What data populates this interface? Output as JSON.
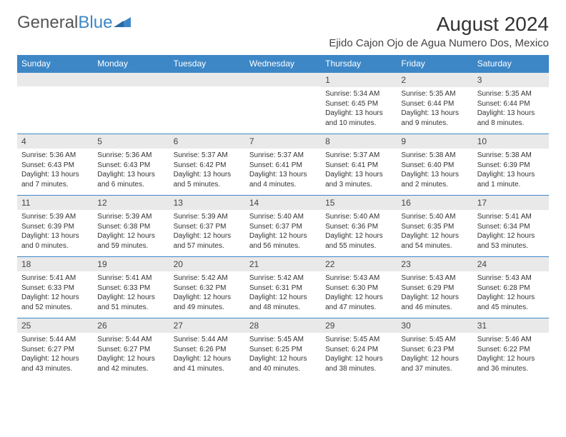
{
  "brand": {
    "part1": "General",
    "part2": "Blue"
  },
  "title": "August 2024",
  "location": "Ejido Cajon Ojo de Agua Numero Dos, Mexico",
  "colors": {
    "header_bg": "#3d87c7",
    "header_text": "#ffffff",
    "daynum_bg": "#e9e9e9",
    "border": "#3d87c7",
    "page_bg": "#ffffff"
  },
  "day_headers": [
    "Sunday",
    "Monday",
    "Tuesday",
    "Wednesday",
    "Thursday",
    "Friday",
    "Saturday"
  ],
  "weeks": [
    [
      {
        "n": "",
        "sr": "",
        "ss": "",
        "d1": "",
        "d2": ""
      },
      {
        "n": "",
        "sr": "",
        "ss": "",
        "d1": "",
        "d2": ""
      },
      {
        "n": "",
        "sr": "",
        "ss": "",
        "d1": "",
        "d2": ""
      },
      {
        "n": "",
        "sr": "",
        "ss": "",
        "d1": "",
        "d2": ""
      },
      {
        "n": "1",
        "sr": "Sunrise: 5:34 AM",
        "ss": "Sunset: 6:45 PM",
        "d1": "Daylight: 13 hours",
        "d2": "and 10 minutes."
      },
      {
        "n": "2",
        "sr": "Sunrise: 5:35 AM",
        "ss": "Sunset: 6:44 PM",
        "d1": "Daylight: 13 hours",
        "d2": "and 9 minutes."
      },
      {
        "n": "3",
        "sr": "Sunrise: 5:35 AM",
        "ss": "Sunset: 6:44 PM",
        "d1": "Daylight: 13 hours",
        "d2": "and 8 minutes."
      }
    ],
    [
      {
        "n": "4",
        "sr": "Sunrise: 5:36 AM",
        "ss": "Sunset: 6:43 PM",
        "d1": "Daylight: 13 hours",
        "d2": "and 7 minutes."
      },
      {
        "n": "5",
        "sr": "Sunrise: 5:36 AM",
        "ss": "Sunset: 6:43 PM",
        "d1": "Daylight: 13 hours",
        "d2": "and 6 minutes."
      },
      {
        "n": "6",
        "sr": "Sunrise: 5:37 AM",
        "ss": "Sunset: 6:42 PM",
        "d1": "Daylight: 13 hours",
        "d2": "and 5 minutes."
      },
      {
        "n": "7",
        "sr": "Sunrise: 5:37 AM",
        "ss": "Sunset: 6:41 PM",
        "d1": "Daylight: 13 hours",
        "d2": "and 4 minutes."
      },
      {
        "n": "8",
        "sr": "Sunrise: 5:37 AM",
        "ss": "Sunset: 6:41 PM",
        "d1": "Daylight: 13 hours",
        "d2": "and 3 minutes."
      },
      {
        "n": "9",
        "sr": "Sunrise: 5:38 AM",
        "ss": "Sunset: 6:40 PM",
        "d1": "Daylight: 13 hours",
        "d2": "and 2 minutes."
      },
      {
        "n": "10",
        "sr": "Sunrise: 5:38 AM",
        "ss": "Sunset: 6:39 PM",
        "d1": "Daylight: 13 hours",
        "d2": "and 1 minute."
      }
    ],
    [
      {
        "n": "11",
        "sr": "Sunrise: 5:39 AM",
        "ss": "Sunset: 6:39 PM",
        "d1": "Daylight: 13 hours",
        "d2": "and 0 minutes."
      },
      {
        "n": "12",
        "sr": "Sunrise: 5:39 AM",
        "ss": "Sunset: 6:38 PM",
        "d1": "Daylight: 12 hours",
        "d2": "and 59 minutes."
      },
      {
        "n": "13",
        "sr": "Sunrise: 5:39 AM",
        "ss": "Sunset: 6:37 PM",
        "d1": "Daylight: 12 hours",
        "d2": "and 57 minutes."
      },
      {
        "n": "14",
        "sr": "Sunrise: 5:40 AM",
        "ss": "Sunset: 6:37 PM",
        "d1": "Daylight: 12 hours",
        "d2": "and 56 minutes."
      },
      {
        "n": "15",
        "sr": "Sunrise: 5:40 AM",
        "ss": "Sunset: 6:36 PM",
        "d1": "Daylight: 12 hours",
        "d2": "and 55 minutes."
      },
      {
        "n": "16",
        "sr": "Sunrise: 5:40 AM",
        "ss": "Sunset: 6:35 PM",
        "d1": "Daylight: 12 hours",
        "d2": "and 54 minutes."
      },
      {
        "n": "17",
        "sr": "Sunrise: 5:41 AM",
        "ss": "Sunset: 6:34 PM",
        "d1": "Daylight: 12 hours",
        "d2": "and 53 minutes."
      }
    ],
    [
      {
        "n": "18",
        "sr": "Sunrise: 5:41 AM",
        "ss": "Sunset: 6:33 PM",
        "d1": "Daylight: 12 hours",
        "d2": "and 52 minutes."
      },
      {
        "n": "19",
        "sr": "Sunrise: 5:41 AM",
        "ss": "Sunset: 6:33 PM",
        "d1": "Daylight: 12 hours",
        "d2": "and 51 minutes."
      },
      {
        "n": "20",
        "sr": "Sunrise: 5:42 AM",
        "ss": "Sunset: 6:32 PM",
        "d1": "Daylight: 12 hours",
        "d2": "and 49 minutes."
      },
      {
        "n": "21",
        "sr": "Sunrise: 5:42 AM",
        "ss": "Sunset: 6:31 PM",
        "d1": "Daylight: 12 hours",
        "d2": "and 48 minutes."
      },
      {
        "n": "22",
        "sr": "Sunrise: 5:43 AM",
        "ss": "Sunset: 6:30 PM",
        "d1": "Daylight: 12 hours",
        "d2": "and 47 minutes."
      },
      {
        "n": "23",
        "sr": "Sunrise: 5:43 AM",
        "ss": "Sunset: 6:29 PM",
        "d1": "Daylight: 12 hours",
        "d2": "and 46 minutes."
      },
      {
        "n": "24",
        "sr": "Sunrise: 5:43 AM",
        "ss": "Sunset: 6:28 PM",
        "d1": "Daylight: 12 hours",
        "d2": "and 45 minutes."
      }
    ],
    [
      {
        "n": "25",
        "sr": "Sunrise: 5:44 AM",
        "ss": "Sunset: 6:27 PM",
        "d1": "Daylight: 12 hours",
        "d2": "and 43 minutes."
      },
      {
        "n": "26",
        "sr": "Sunrise: 5:44 AM",
        "ss": "Sunset: 6:27 PM",
        "d1": "Daylight: 12 hours",
        "d2": "and 42 minutes."
      },
      {
        "n": "27",
        "sr": "Sunrise: 5:44 AM",
        "ss": "Sunset: 6:26 PM",
        "d1": "Daylight: 12 hours",
        "d2": "and 41 minutes."
      },
      {
        "n": "28",
        "sr": "Sunrise: 5:45 AM",
        "ss": "Sunset: 6:25 PM",
        "d1": "Daylight: 12 hours",
        "d2": "and 40 minutes."
      },
      {
        "n": "29",
        "sr": "Sunrise: 5:45 AM",
        "ss": "Sunset: 6:24 PM",
        "d1": "Daylight: 12 hours",
        "d2": "and 38 minutes."
      },
      {
        "n": "30",
        "sr": "Sunrise: 5:45 AM",
        "ss": "Sunset: 6:23 PM",
        "d1": "Daylight: 12 hours",
        "d2": "and 37 minutes."
      },
      {
        "n": "31",
        "sr": "Sunrise: 5:46 AM",
        "ss": "Sunset: 6:22 PM",
        "d1": "Daylight: 12 hours",
        "d2": "and 36 minutes."
      }
    ]
  ]
}
